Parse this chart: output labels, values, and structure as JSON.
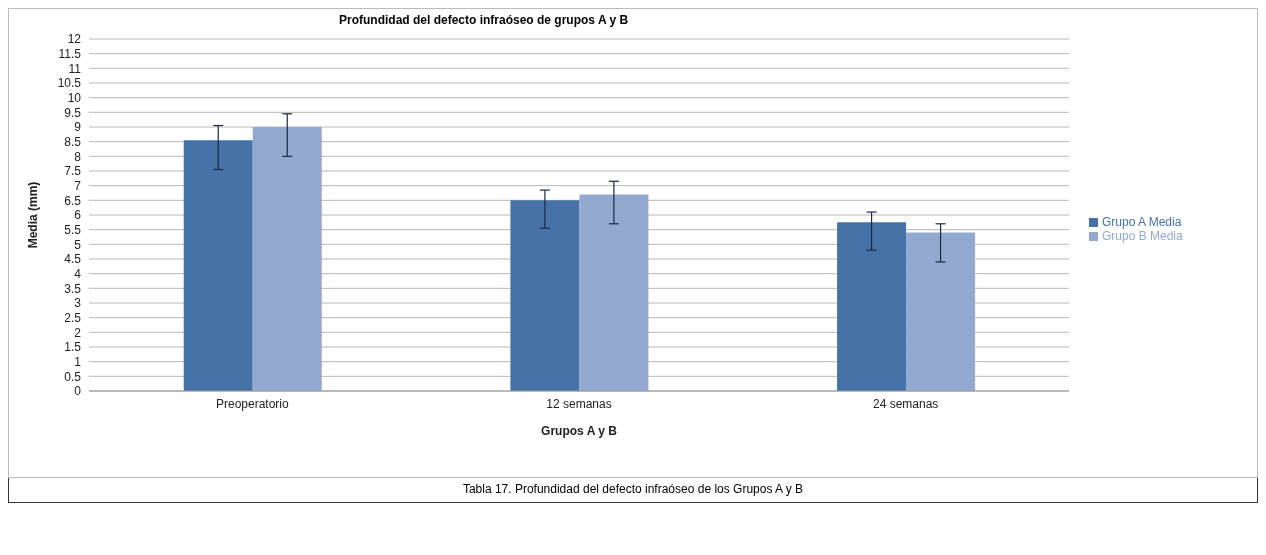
{
  "chart_data": {
    "type": "bar",
    "title": "Profundidad del defecto infraóseo de grupos A y B",
    "xlabel": "Grupos A y B",
    "ylabel": "Media (mm)",
    "categories": [
      "Preoperatorio",
      "12 semanas",
      "24 semanas"
    ],
    "series": [
      {
        "name": "Grupo A Media",
        "color": "#4672a8",
        "values": [
          8.55,
          6.5,
          5.75
        ],
        "errors": [
          [
            7.55,
            9.05
          ],
          [
            5.55,
            6.85
          ],
          [
            4.8,
            6.1
          ]
        ]
      },
      {
        "name": "Grupo B Media",
        "color": "#93a9d0",
        "values": [
          9.0,
          6.7,
          5.4
        ],
        "errors": [
          [
            8.0,
            9.45
          ],
          [
            5.7,
            7.15
          ],
          [
            4.4,
            5.7
          ]
        ]
      }
    ],
    "ylim": [
      0,
      12
    ],
    "yticks": [
      0,
      0.5,
      1,
      1.5,
      2,
      2.5,
      3,
      3.5,
      4,
      4.5,
      5,
      5.5,
      6,
      6.5,
      7,
      7.5,
      8,
      8.5,
      9,
      9.5,
      10,
      10.5,
      11,
      11.5,
      12
    ],
    "grid": "y",
    "legend": "right",
    "annotations": [
      "Tabla 17. Profundidad del defecto infraóseo de los Grupos A y B"
    ]
  }
}
